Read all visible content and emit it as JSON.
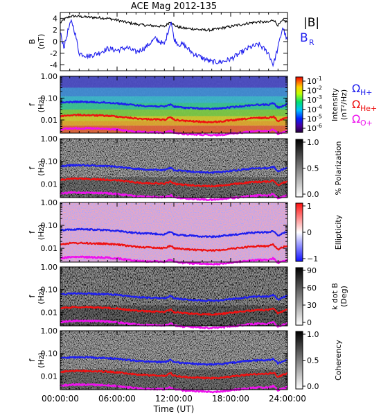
{
  "chart_data": {
    "title": "ACE Mag 2012-135",
    "xlabel": "Time (UT)",
    "x_tick_labels": [
      "00:00:00",
      "06:00:00",
      "12:00:00",
      "18:00:00",
      "24:00:00"
    ],
    "x_range_hours": [
      0,
      24
    ],
    "panels": [
      {
        "type": "line",
        "name": "magnetic-field",
        "ylabel_lines": [
          "B",
          "(nT)"
        ],
        "ylim": [
          -5,
          5
        ],
        "y_ticks": [
          4,
          2,
          0,
          -2,
          -4
        ],
        "legend": [
          "|B|",
          "B_R"
        ],
        "legend_labels": [
          "|B|",
          "B",
          "R"
        ],
        "series": [
          {
            "name": "|B|",
            "color": "#000000",
            "x": [
              0,
              0.5,
              1,
              1.5,
              2,
              3,
              4,
              5,
              6,
              7,
              8,
              9,
              10,
              11,
              11.7,
              12,
              12.5,
              13,
              14,
              15,
              16,
              17,
              18,
              19,
              20,
              21,
              22,
              22.5,
              23,
              23.5,
              24
            ],
            "values": [
              3.2,
              3.9,
              4.3,
              4.4,
              4.3,
              4.2,
              4.1,
              4.0,
              3.7,
              3.3,
              3.0,
              2.8,
              2.7,
              2.6,
              3.5,
              2.8,
              2.5,
              2.3,
              2.2,
              2.0,
              2.0,
              2.3,
              2.6,
              2.9,
              3.2,
              3.4,
              3.3,
              3.8,
              2.8,
              3.6,
              3.4
            ]
          },
          {
            "name": "B_R",
            "color": "#1f1fee",
            "x": [
              0,
              0.4,
              0.8,
              1.2,
              1.6,
              2,
              3,
              4,
              5,
              6,
              7,
              8,
              9,
              10,
              11,
              11.7,
              12,
              12.5,
              13,
              14,
              15,
              16,
              17,
              18,
              19,
              20,
              21,
              22,
              22.5,
              23,
              23.5,
              24
            ],
            "values": [
              1.5,
              -1.0,
              1.8,
              3.6,
              1.2,
              -2.0,
              -2.5,
              -2.0,
              -1.2,
              -1.5,
              -1.0,
              -1.8,
              -1.0,
              0.5,
              -0.5,
              3.6,
              0.5,
              -0.5,
              -0.5,
              -2.0,
              -2.8,
              -3.5,
              -3.5,
              -3.0,
              -2.0,
              -1.0,
              -0.5,
              -2.0,
              -4.0,
              -1.0,
              2.5,
              0.0
            ]
          }
        ]
      },
      {
        "type": "heatmap",
        "name": "intensity-spectrogram",
        "ylabel_lines": [
          "f",
          "(Hz)"
        ],
        "y_scale": "log",
        "ylim": [
          0.0025,
          1.0
        ],
        "y_ticks": [
          1.0,
          0.1,
          0.01
        ],
        "y_tick_labels": [
          "1.00",
          "0.10",
          "0.01"
        ],
        "colorbar": {
          "title_lines": [
            "Intensity",
            "(nT²/Hz)"
          ],
          "colormap": "rainbow",
          "ticks": [
            {
              "base": "10",
              "exp": "-1"
            },
            {
              "base": "10",
              "exp": "-2"
            },
            {
              "base": "10",
              "exp": "-3"
            },
            {
              "base": "10",
              "exp": "-4"
            },
            {
              "base": "10",
              "exp": "-5"
            },
            {
              "base": "10",
              "exp": "-6"
            }
          ]
        },
        "legend": [
          {
            "symbol": "Ω",
            "subscript": "H+",
            "color": "#1f1fee"
          },
          {
            "symbol": "Ω",
            "subscript": "He+",
            "color": "#ee1111"
          },
          {
            "symbol": "Ω",
            "subscript": "O+",
            "color": "#ee11ee"
          }
        ]
      },
      {
        "type": "heatmap",
        "name": "polarization-spectrogram",
        "ylabel_lines": [
          "f",
          "(Hz)"
        ],
        "y_scale": "log",
        "ylim": [
          0.0025,
          1.0
        ],
        "y_ticks": [
          1.0,
          0.1,
          0.01
        ],
        "y_tick_labels": [
          "1.00",
          "0.10",
          "0.01"
        ],
        "colorbar": {
          "title_lines": [
            "% Polarization"
          ],
          "colormap": "gray_reversed",
          "range": [
            0,
            1
          ],
          "tick_labels": [
            "1.0",
            "0.5",
            "0.0"
          ]
        }
      },
      {
        "type": "heatmap",
        "name": "ellipticity-spectrogram",
        "ylabel_lines": [
          "f",
          "(Hz)"
        ],
        "y_scale": "log",
        "ylim": [
          0.0025,
          1.0
        ],
        "y_ticks": [
          1.0,
          0.1,
          0.01
        ],
        "y_tick_labels": [
          "1.00",
          "0.10",
          "0.01"
        ],
        "colorbar": {
          "title_lines": [
            "Ellipticity"
          ],
          "colormap": "blue_white_red",
          "range": [
            -1,
            1
          ],
          "tick_labels": [
            "1",
            "0",
            "−1"
          ]
        }
      },
      {
        "type": "heatmap",
        "name": "k-dot-b-spectrogram",
        "ylabel_lines": [
          "f",
          "(Hz)"
        ],
        "y_scale": "log",
        "ylim": [
          0.0025,
          1.0
        ],
        "y_ticks": [
          1.0,
          0.1,
          0.01
        ],
        "y_tick_labels": [
          "1.00",
          "0.10",
          "0.01"
        ],
        "colorbar": {
          "title_lines": [
            "k dot B",
            "(Deg)"
          ],
          "colormap": "gray_reversed",
          "range": [
            0,
            90
          ],
          "tick_labels": [
            "90",
            "60",
            "30",
            "0"
          ]
        }
      },
      {
        "type": "heatmap",
        "name": "coherency-spectrogram",
        "ylabel_lines": [
          "f",
          "(Hz)"
        ],
        "y_scale": "log",
        "ylim": [
          0.0025,
          1.0
        ],
        "y_ticks": [
          1.0,
          0.1,
          0.01
        ],
        "y_tick_labels": [
          "1.00",
          "0.10",
          "0.01"
        ],
        "colorbar": {
          "title_lines": [
            "Coherency"
          ],
          "colormap": "gray_reversed",
          "range": [
            0,
            1
          ],
          "tick_labels": [
            "1.0",
            "0.5",
            "0.0"
          ]
        }
      }
    ],
    "gyrofrequency_curves": {
      "x": [
        0,
        1,
        2,
        3,
        4,
        5,
        6,
        7,
        8,
        9,
        10,
        11,
        11.7,
        12,
        13,
        14,
        15,
        16,
        17,
        18,
        19,
        20,
        21,
        22,
        22.5,
        23,
        24
      ],
      "H+": {
        "color": "#1f1fee",
        "values": [
          0.06,
          0.066,
          0.068,
          0.066,
          0.064,
          0.062,
          0.058,
          0.052,
          0.047,
          0.044,
          0.043,
          0.041,
          0.052,
          0.041,
          0.037,
          0.035,
          0.033,
          0.032,
          0.034,
          0.038,
          0.042,
          0.047,
          0.05,
          0.05,
          0.058,
          0.036,
          0.052
        ]
      },
      "He+": {
        "color": "#ee1111",
        "values": [
          0.015,
          0.0165,
          0.017,
          0.0165,
          0.016,
          0.0155,
          0.0145,
          0.013,
          0.0117,
          0.011,
          0.0107,
          0.0102,
          0.013,
          0.0102,
          0.0092,
          0.0087,
          0.0082,
          0.008,
          0.0085,
          0.0095,
          0.0105,
          0.0117,
          0.0125,
          0.0125,
          0.0145,
          0.009,
          0.013
        ]
      },
      "O+": {
        "color": "#ee11ee",
        "values": [
          0.0037,
          0.0041,
          0.0042,
          0.0041,
          0.004,
          0.0039,
          0.0036,
          0.0032,
          0.0029,
          0.0027,
          0.0027,
          0.0026,
          0.0032,
          0.0026,
          0.0023,
          0.0022,
          0.0021,
          0.002,
          0.0021,
          0.0024,
          0.0026,
          0.0029,
          0.0031,
          0.0031,
          0.0036,
          0.0023,
          0.0032
        ]
      }
    }
  }
}
